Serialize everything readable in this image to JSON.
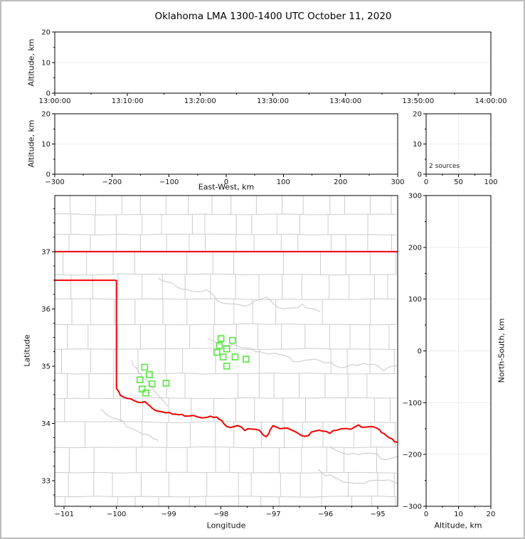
{
  "title": "Oklahoma LMA 1300-1400 UTC October 11, 2020",
  "colors": {
    "state_border": "#f40000",
    "county_line": "#cccccc",
    "river_line": "#c6c6c6",
    "station_marker": "#5ce845",
    "gridline": "#ececec",
    "axis": "#000000",
    "window_frame": "#bdbdbd",
    "background": "#ffffff"
  },
  "chart_data": [
    {
      "id": "altitude_vs_time",
      "type": "scatter",
      "ylabel": "Altitude, km",
      "x_tick_labels": [
        "13:00:00",
        "13:10:00",
        "13:20:00",
        "13:30:00",
        "13:40:00",
        "13:50:00",
        "14:00:00"
      ],
      "yticks": [
        0,
        10,
        20
      ],
      "ylim": [
        0,
        20
      ],
      "x_minor_step": 0.5,
      "y_minor_step": 5,
      "grid_y": [
        10
      ],
      "points": []
    },
    {
      "id": "altitude_vs_east_west",
      "type": "scatter",
      "xlabel": "East-West, km",
      "ylabel": "Altitude, km",
      "xticks": [
        -300,
        -200,
        -100,
        0,
        100,
        200,
        300
      ],
      "xlim": [
        -300,
        300
      ],
      "yticks": [
        0,
        10,
        20
      ],
      "ylim": [
        0,
        20
      ],
      "x_minor_step": 50,
      "y_minor_step": 5,
      "grid_y": [
        10
      ],
      "points": []
    },
    {
      "id": "source_count_histogram",
      "type": "line",
      "annotation": "2 sources",
      "xticks": [
        0,
        50,
        100
      ],
      "xlim": [
        0,
        100
      ],
      "yticks": [
        0,
        10,
        20
      ],
      "ylim": [
        0,
        20
      ],
      "x_minor_step": 25,
      "y_minor_step": 5,
      "grid_x": [
        50
      ],
      "grid_y": [
        10
      ],
      "points": []
    },
    {
      "id": "plan_view_map",
      "type": "scatter",
      "xlabel": "Longitude",
      "ylabel": "Latitude",
      "xticks": [
        -101,
        -100,
        -99,
        -98,
        -97,
        -96,
        -95
      ],
      "xlim": [
        -101.18,
        -94.62
      ],
      "yticks": [
        33,
        34,
        35,
        36,
        37
      ],
      "ylim": [
        32.55,
        37.98
      ],
      "x_minor_step": 0.5,
      "y_minor_step": 0.25,
      "stations": [
        [
          -99.46,
          34.98
        ],
        [
          -99.37,
          34.85
        ],
        [
          -99.55,
          34.76
        ],
        [
          -99.32,
          34.69
        ],
        [
          -99.05,
          34.7
        ],
        [
          -99.51,
          34.6
        ],
        [
          -99.44,
          34.53
        ],
        [
          -98.0,
          35.48
        ],
        [
          -97.78,
          35.45
        ],
        [
          -98.03,
          35.36
        ],
        [
          -97.89,
          35.3
        ],
        [
          -98.08,
          35.24
        ],
        [
          -97.96,
          35.16
        ],
        [
          -97.73,
          35.16
        ],
        [
          -97.52,
          35.12
        ],
        [
          -97.89,
          35.0
        ]
      ],
      "state_boundary": {
        "north_border": [
          [
            -101.18,
            37.0
          ],
          [
            -94.62,
            37.0
          ]
        ],
        "panhandle_south_border": [
          [
            -101.18,
            36.5
          ],
          [
            -100.0,
            36.5
          ]
        ],
        "meridian_100_border": [
          [
            -100.0,
            36.5
          ],
          [
            -100.0,
            34.6
          ]
        ],
        "red_river_border": [
          [
            -100.0,
            34.6
          ],
          [
            -99.86,
            34.45
          ],
          [
            -99.73,
            34.42
          ],
          [
            -99.59,
            34.39
          ],
          [
            -99.46,
            34.37
          ],
          [
            -99.32,
            34.28
          ],
          [
            -99.18,
            34.22
          ],
          [
            -99.05,
            34.17
          ],
          [
            -98.87,
            34.18
          ],
          [
            -98.69,
            34.12
          ],
          [
            -98.53,
            34.14
          ],
          [
            -98.37,
            34.09
          ],
          [
            -98.2,
            34.13
          ],
          [
            -98.08,
            34.11
          ],
          [
            -97.96,
            33.99
          ],
          [
            -97.82,
            33.93
          ],
          [
            -97.69,
            33.96
          ],
          [
            -97.55,
            33.88
          ],
          [
            -97.41,
            33.92
          ],
          [
            -97.28,
            33.87
          ],
          [
            -97.14,
            33.77
          ],
          [
            -97.01,
            33.94
          ],
          [
            -96.87,
            33.91
          ],
          [
            -96.73,
            33.91
          ],
          [
            -96.6,
            33.86
          ],
          [
            -96.46,
            33.78
          ],
          [
            -96.33,
            33.8
          ],
          [
            -96.19,
            33.86
          ],
          [
            -96.05,
            33.88
          ],
          [
            -95.92,
            33.83
          ],
          [
            -95.78,
            33.89
          ],
          [
            -95.65,
            33.92
          ],
          [
            -95.51,
            33.89
          ],
          [
            -95.37,
            33.97
          ],
          [
            -95.24,
            33.93
          ],
          [
            -95.1,
            33.93
          ],
          [
            -94.97,
            33.87
          ],
          [
            -94.83,
            33.78
          ],
          [
            -94.72,
            33.72
          ],
          [
            -94.62,
            33.67
          ]
        ]
      },
      "county_lon_lines": [
        -100.95,
        -100.5,
        -100.0,
        -99.55,
        -99.1,
        -98.65,
        -98.2,
        -97.76,
        -97.32,
        -96.88,
        -96.44,
        -96.0,
        -95.56,
        -95.1,
        -94.72
      ],
      "county_lat_lines": [
        37.65,
        37.3,
        36.6,
        36.17,
        35.73,
        35.3,
        34.87,
        34.44,
        34.02,
        33.58,
        33.14,
        32.72
      ],
      "rivers": [
        [
          [
            -99.2,
            36.55
          ],
          [
            -98.75,
            36.35
          ],
          [
            -98.3,
            36.3
          ],
          [
            -97.95,
            36.12
          ],
          [
            -97.55,
            36.05
          ],
          [
            -97.15,
            36.18
          ],
          [
            -96.8,
            35.98
          ],
          [
            -96.45,
            36.08
          ],
          [
            -96.1,
            35.95
          ]
        ],
        [
          [
            -98.25,
            35.5
          ],
          [
            -97.95,
            35.38
          ],
          [
            -97.6,
            35.33
          ],
          [
            -97.25,
            35.22
          ],
          [
            -96.9,
            35.22
          ],
          [
            -96.5,
            35.08
          ],
          [
            -96.1,
            35.12
          ],
          [
            -95.7,
            34.98
          ],
          [
            -95.28,
            35.04
          ],
          [
            -94.9,
            34.95
          ],
          [
            -94.63,
            35.0
          ]
        ],
        [
          [
            -99.7,
            35.1
          ],
          [
            -99.55,
            34.9
          ],
          [
            -99.42,
            34.72
          ],
          [
            -99.3,
            34.58
          ],
          [
            -99.14,
            34.45
          ],
          [
            -99.02,
            34.3
          ]
        ],
        [
          [
            -100.3,
            34.25
          ],
          [
            -100.05,
            34.1
          ],
          [
            -99.8,
            33.95
          ],
          [
            -99.5,
            33.8
          ],
          [
            -99.2,
            33.7
          ]
        ],
        [
          [
            -95.9,
            33.6
          ],
          [
            -95.55,
            33.45
          ],
          [
            -95.2,
            33.5
          ],
          [
            -94.85,
            33.35
          ],
          [
            -94.63,
            33.42
          ]
        ],
        [
          [
            -96.15,
            33.18
          ],
          [
            -95.75,
            33.0
          ],
          [
            -95.35,
            32.92
          ],
          [
            -94.98,
            33.03
          ],
          [
            -94.63,
            32.95
          ]
        ]
      ]
    },
    {
      "id": "north_south_vs_altitude",
      "type": "scatter",
      "xlabel": "Altitude, km",
      "ylabel": "North-South, km",
      "xticks": [
        0,
        10,
        20
      ],
      "xlim": [
        0,
        20
      ],
      "yticks": [
        300,
        200,
        100,
        0,
        -100,
        -200,
        -300
      ],
      "ylim": [
        -300,
        300
      ],
      "x_minor_step": 5,
      "y_minor_step": 50,
      "grid_x": [
        10
      ],
      "grid_y": [
        200,
        100,
        0,
        -100,
        -200
      ],
      "points": []
    }
  ]
}
